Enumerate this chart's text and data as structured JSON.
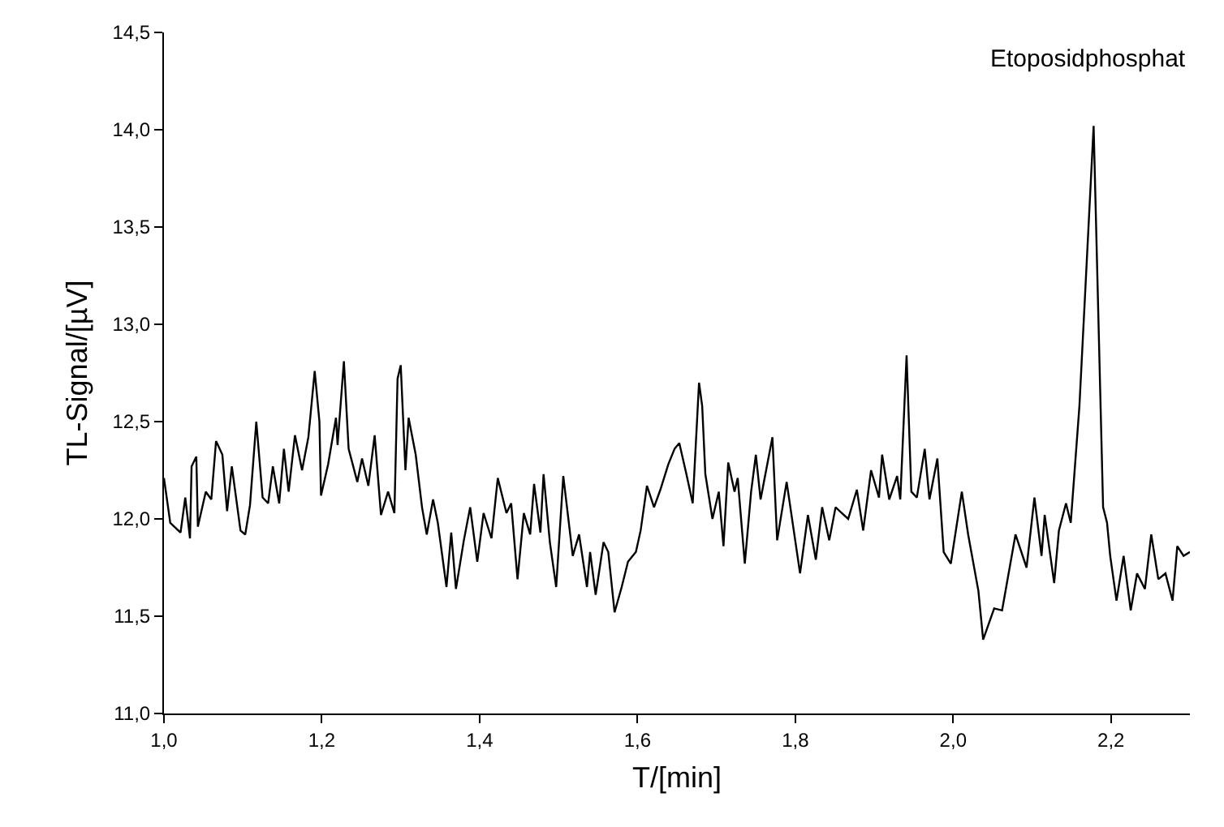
{
  "chart_data": {
    "type": "line",
    "xlabel": "T/[min]",
    "ylabel": "TL-Signal/[µV]",
    "annotations": [
      "Etoposidphosphat"
    ],
    "xlim": [
      1.0,
      2.3
    ],
    "xticks": [
      {
        "value": 1.0,
        "label": "1,0"
      },
      {
        "value": 1.2,
        "label": "1,2"
      },
      {
        "value": 1.4,
        "label": "1,4"
      },
      {
        "value": 1.6,
        "label": "1,6"
      },
      {
        "value": 1.8,
        "label": "1,8"
      },
      {
        "value": 2.0,
        "label": "2,0"
      },
      {
        "value": 2.2,
        "label": "2,2"
      }
    ],
    "ylim": [
      11.0,
      14.5
    ],
    "yticks": [
      {
        "value": 11.0,
        "label": "11,0"
      },
      {
        "value": 11.5,
        "label": "11,5"
      },
      {
        "value": 12.0,
        "label": "12,0"
      },
      {
        "value": 12.5,
        "label": "12,5"
      },
      {
        "value": 13.0,
        "label": "13,0"
      },
      {
        "value": 13.5,
        "label": "13,5"
      },
      {
        "value": 14.0,
        "label": "14,0"
      },
      {
        "value": 14.5,
        "label": "14,5"
      }
    ],
    "marker": "none",
    "line_style": "solid",
    "series": [
      {
        "color": "#000000",
        "x": [
          1.0,
          1.008,
          1.021,
          1.027,
          1.033,
          1.035,
          1.041,
          1.043,
          1.053,
          1.06,
          1.066,
          1.074,
          1.08,
          1.086,
          1.097,
          1.103,
          1.109,
          1.117,
          1.125,
          1.132,
          1.138,
          1.146,
          1.152,
          1.158,
          1.166,
          1.175,
          1.183,
          1.191,
          1.197,
          1.199,
          1.208,
          1.218,
          1.22,
          1.228,
          1.234,
          1.245,
          1.251,
          1.259,
          1.267,
          1.275,
          1.284,
          1.292,
          1.296,
          1.3,
          1.306,
          1.31,
          1.319,
          1.327,
          1.333,
          1.341,
          1.347,
          1.358,
          1.364,
          1.37,
          1.38,
          1.388,
          1.397,
          1.405,
          1.415,
          1.423,
          1.434,
          1.44,
          1.448,
          1.456,
          1.464,
          1.469,
          1.477,
          1.481,
          1.489,
          1.497,
          1.506,
          1.518,
          1.526,
          1.536,
          1.54,
          1.547,
          1.557,
          1.563,
          1.571,
          1.58,
          1.588,
          1.598,
          1.604,
          1.612,
          1.621,
          1.629,
          1.639,
          1.647,
          1.653,
          1.662,
          1.67,
          1.678,
          1.682,
          1.686,
          1.695,
          1.703,
          1.709,
          1.715,
          1.723,
          1.727,
          1.736,
          1.744,
          1.75,
          1.756,
          1.771,
          1.777,
          1.789,
          1.806,
          1.816,
          1.826,
          1.834,
          1.843,
          1.851,
          1.859,
          1.867,
          1.878,
          1.886,
          1.896,
          1.906,
          1.91,
          1.919,
          1.929,
          1.933,
          1.941,
          1.947,
          1.954,
          1.964,
          1.97,
          1.98,
          1.988,
          1.997,
          2.011,
          2.019,
          2.032,
          2.038,
          2.052,
          2.062,
          2.079,
          2.093,
          2.103,
          2.112,
          2.116,
          2.128,
          2.134,
          2.143,
          2.149,
          2.16,
          2.178,
          2.19,
          2.195,
          2.199,
          2.207,
          2.216,
          2.225,
          2.233,
          2.243,
          2.251,
          2.26,
          2.269,
          2.278,
          2.284,
          2.292,
          2.3
        ],
        "values": [
          12.21,
          11.98,
          11.93,
          12.11,
          11.9,
          12.27,
          12.32,
          11.96,
          12.14,
          12.1,
          12.4,
          12.33,
          12.04,
          12.27,
          11.94,
          11.92,
          12.07,
          12.5,
          12.11,
          12.08,
          12.27,
          12.08,
          12.36,
          12.14,
          12.43,
          12.25,
          12.42,
          12.76,
          12.5,
          12.12,
          12.28,
          12.52,
          12.38,
          12.81,
          12.36,
          12.19,
          12.31,
          12.17,
          12.43,
          12.02,
          12.14,
          12.03,
          12.72,
          12.79,
          12.25,
          12.52,
          12.33,
          12.06,
          11.92,
          12.1,
          11.98,
          11.65,
          11.93,
          11.64,
          11.89,
          12.06,
          11.78,
          12.03,
          11.9,
          12.21,
          12.03,
          12.08,
          11.69,
          12.03,
          11.92,
          12.18,
          11.93,
          12.23,
          11.88,
          11.65,
          12.22,
          11.81,
          11.92,
          11.65,
          11.83,
          11.61,
          11.88,
          11.83,
          11.52,
          11.65,
          11.78,
          11.83,
          11.94,
          12.17,
          12.06,
          12.15,
          12.28,
          12.36,
          12.39,
          12.23,
          12.08,
          12.7,
          12.58,
          12.23,
          12.0,
          12.14,
          11.86,
          12.29,
          12.14,
          12.21,
          11.77,
          12.14,
          12.33,
          12.1,
          12.42,
          11.89,
          12.19,
          11.72,
          12.02,
          11.79,
          12.06,
          11.89,
          12.06,
          12.03,
          12.0,
          12.15,
          11.94,
          12.25,
          12.11,
          12.33,
          12.1,
          12.22,
          12.1,
          12.84,
          12.14,
          12.11,
          12.36,
          12.1,
          12.31,
          11.83,
          11.77,
          12.14,
          11.92,
          11.63,
          11.38,
          11.54,
          11.53,
          11.92,
          11.75,
          12.11,
          11.81,
          12.02,
          11.67,
          11.94,
          12.08,
          11.98,
          12.58,
          14.02,
          12.06,
          11.98,
          11.81,
          11.58,
          11.81,
          11.53,
          11.72,
          11.64,
          11.92,
          11.69,
          11.72,
          11.58,
          11.86,
          11.81,
          11.83
        ]
      }
    ]
  }
}
